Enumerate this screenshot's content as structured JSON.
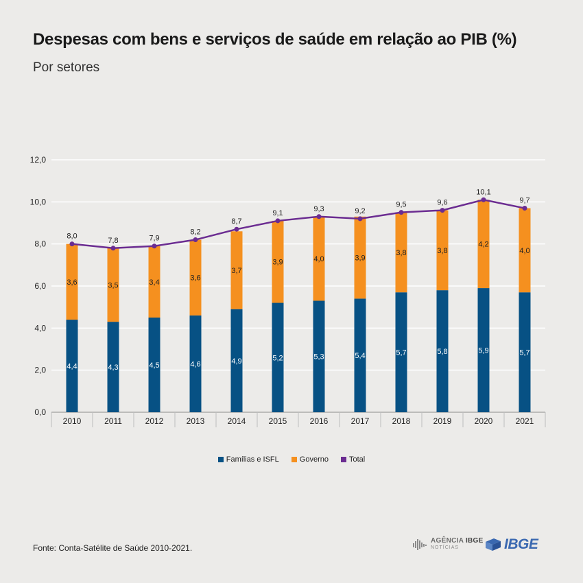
{
  "title": "Despesas com bens e serviços de saúde em relação ao PIB (%)",
  "subtitle": "Por setores",
  "source": "Fonte: Conta-Satélite de Saúde 2010-2021.",
  "logos": {
    "agencia_part1": "AGÊNCIA",
    "agencia_part2": "IBGE",
    "agencia_sub": "NOTÍCIAS",
    "ibge": "IBGE"
  },
  "colors": {
    "familias": "#075184",
    "governo": "#f5901f",
    "total": "#6b2c91",
    "grid": "#ffffff",
    "background": "#ecebe9"
  },
  "chart_data": {
    "type": "bar",
    "stacked": true,
    "title": "Despesas com bens e serviços de saúde em relação ao PIB (%)",
    "subtitle": "Por setores",
    "categories": [
      "2010",
      "2011",
      "2012",
      "2013",
      "2014",
      "2015",
      "2016",
      "2017",
      "2018",
      "2019",
      "2020",
      "2021"
    ],
    "series": [
      {
        "name": "Famílias e ISFL",
        "kind": "bar",
        "values": [
          4.4,
          4.3,
          4.5,
          4.6,
          4.9,
          5.2,
          5.3,
          5.4,
          5.7,
          5.8,
          5.9,
          5.7
        ],
        "labels": [
          "4,4",
          "4,3",
          "4,5",
          "4,6",
          "4,9",
          "5,2",
          "5,3",
          "5,4",
          "5,7",
          "5,8",
          "5,9",
          "5,7"
        ]
      },
      {
        "name": "Governo",
        "kind": "bar",
        "values": [
          3.6,
          3.5,
          3.4,
          3.6,
          3.7,
          3.9,
          4.0,
          3.9,
          3.8,
          3.8,
          4.2,
          4.0
        ],
        "labels": [
          "3,6",
          "3,5",
          "3,4",
          "3,6",
          "3,7",
          "3,9",
          "4,0",
          "3,9",
          "3,8",
          "3,8",
          "4,2",
          "4,0"
        ]
      },
      {
        "name": "Total",
        "kind": "line",
        "values": [
          8.0,
          7.8,
          7.9,
          8.2,
          8.7,
          9.1,
          9.3,
          9.2,
          9.5,
          9.6,
          10.1,
          9.7
        ],
        "labels": [
          "8,0",
          "7,8",
          "7,9",
          "8,2",
          "8,7",
          "9,1",
          "9,3",
          "9,2",
          "9,5",
          "9,6",
          "10,1",
          "9,7"
        ]
      }
    ],
    "ylim": [
      0,
      12
    ],
    "yticks": [
      0,
      2,
      4,
      6,
      8,
      10,
      12
    ],
    "ytick_labels": [
      "0,0",
      "2,0",
      "4,0",
      "6,0",
      "8,0",
      "10,0",
      "12,0"
    ],
    "xlabel": "",
    "ylabel": "",
    "grid": true,
    "legend": "bottom-center"
  }
}
